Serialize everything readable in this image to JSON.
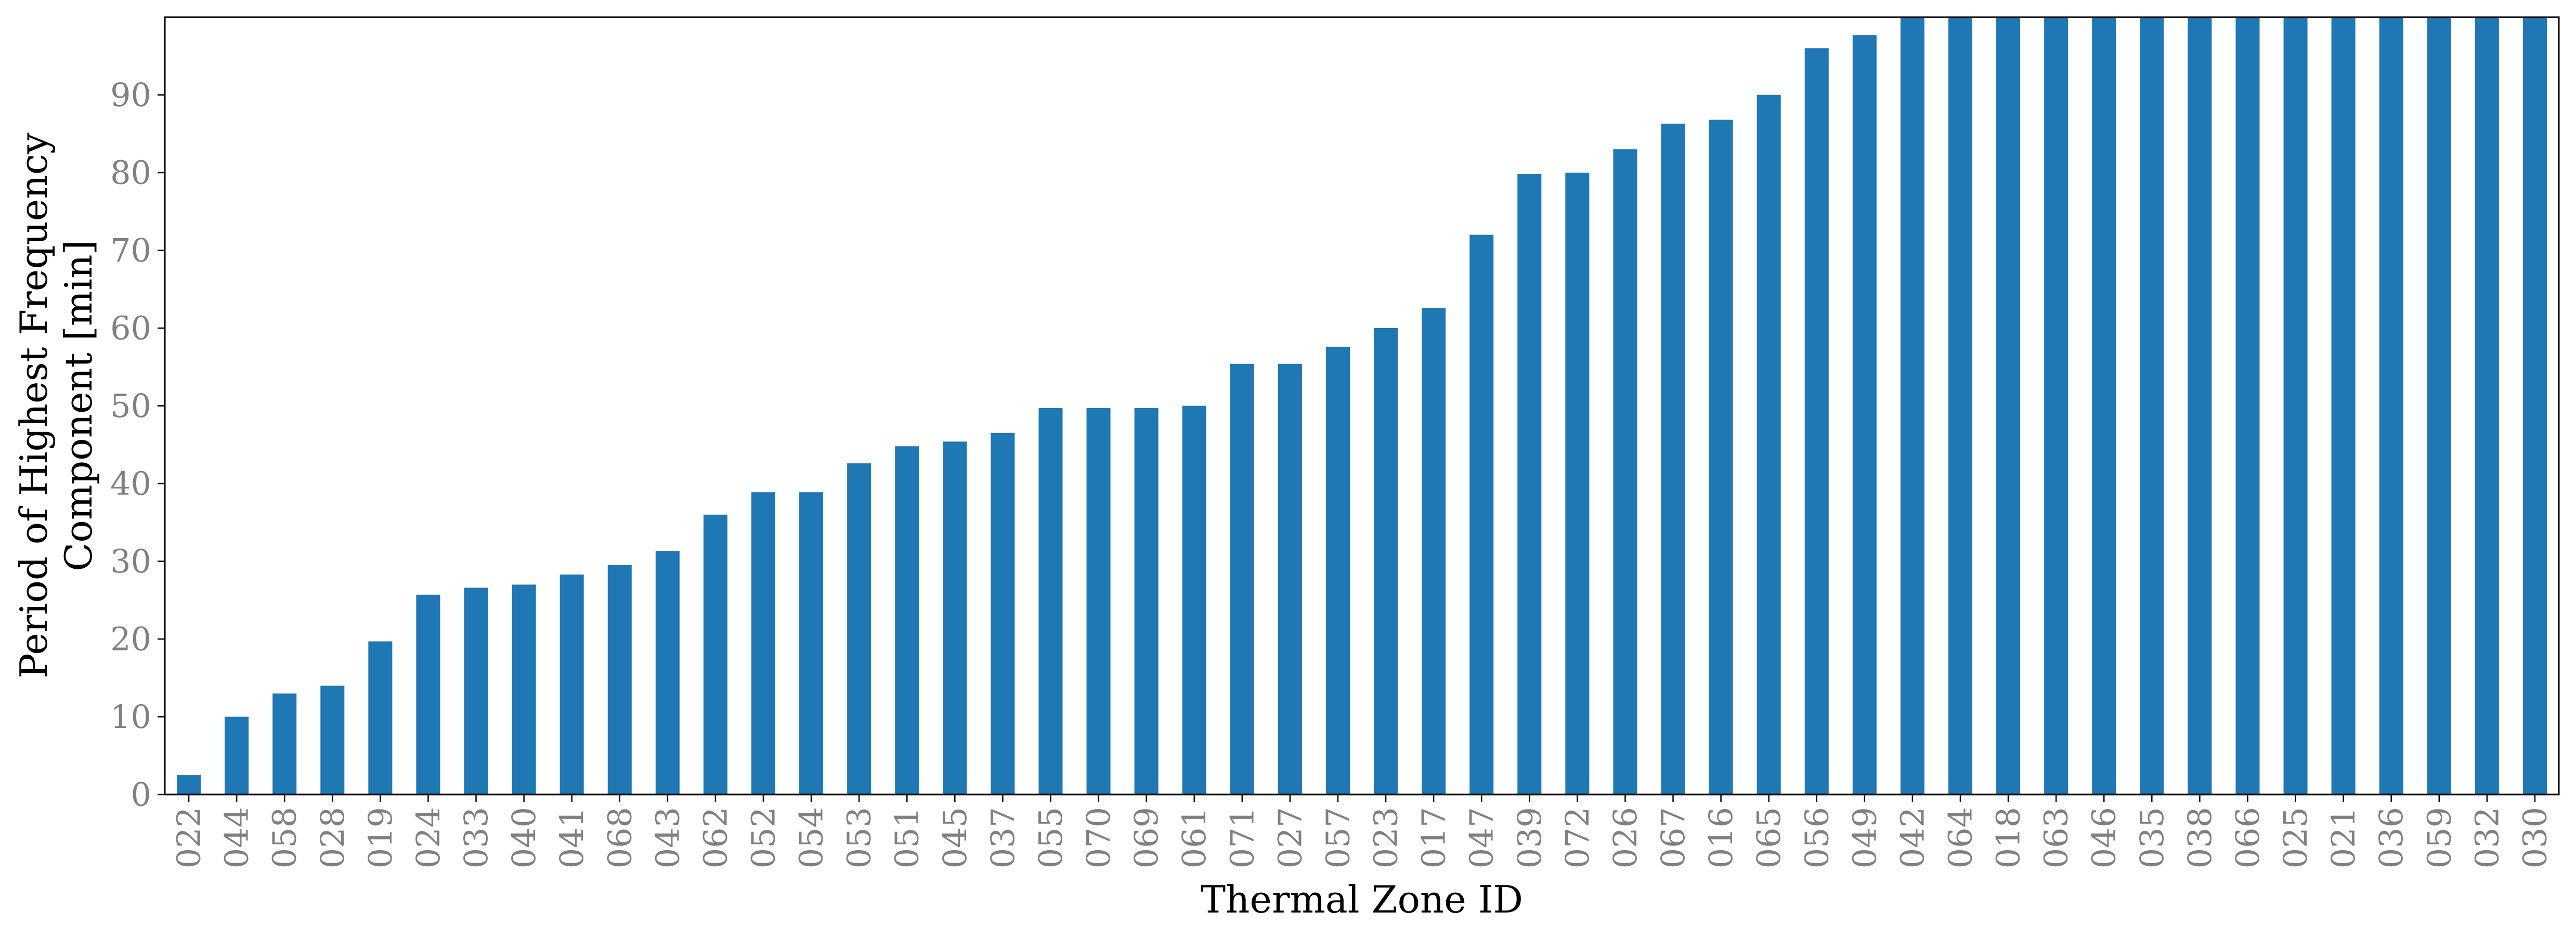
{
  "chart_data": {
    "type": "bar",
    "title": "",
    "xlabel": "Thermal Zone ID",
    "ylabel_lines": [
      "Period of Highest Frequency",
      "Component [min]"
    ],
    "categories": [
      "022",
      "044",
      "058",
      "028",
      "019",
      "024",
      "033",
      "040",
      "041",
      "068",
      "043",
      "062",
      "052",
      "054",
      "053",
      "051",
      "045",
      "037",
      "055",
      "070",
      "069",
      "061",
      "071",
      "027",
      "057",
      "023",
      "017",
      "047",
      "039",
      "072",
      "026",
      "067",
      "016",
      "065",
      "056",
      "049",
      "042",
      "064",
      "018",
      "063",
      "046",
      "035",
      "038",
      "066",
      "025",
      "021",
      "036",
      "059",
      "032",
      "030"
    ],
    "values": [
      2.5,
      10,
      13,
      14,
      19.7,
      25.7,
      26.6,
      27,
      28.3,
      29.5,
      31.3,
      36,
      38.9,
      38.9,
      42.6,
      44.8,
      45.4,
      46.5,
      49.7,
      49.7,
      49.7,
      50,
      55.4,
      55.4,
      57.6,
      60,
      62.6,
      72,
      79.8,
      80,
      83,
      86.3,
      86.8,
      90,
      96,
      97.7,
      100,
      100,
      100,
      100,
      100,
      100,
      100,
      100,
      100,
      100,
      100,
      100,
      100,
      100
    ],
    "ylim": [
      0,
      100
    ],
    "yticks": [
      0,
      10,
      20,
      30,
      40,
      50,
      60,
      70,
      80,
      90
    ],
    "grid": false,
    "legend": "none",
    "bar_color": "#1f77b4",
    "tick_color": "#808080"
  }
}
